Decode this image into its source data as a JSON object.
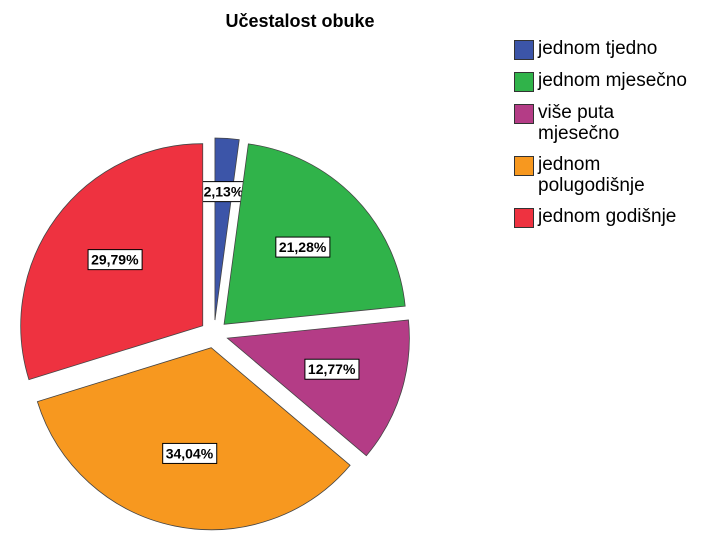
{
  "chart_data": {
    "type": "pie",
    "title": "Učestalost obuke",
    "categories": [
      "jednom tjedno",
      "jednom mjesečno",
      "više puta mjesečno",
      "jednom polugodišnje",
      "jednom godišnje"
    ],
    "values": [
      2.13,
      21.28,
      12.77,
      34.04,
      29.79
    ],
    "value_labels": [
      "2,13%",
      "21,28%",
      "12,77%",
      "34,04%",
      "29,79%"
    ],
    "colors": [
      "#3c55a8",
      "#30b34a",
      "#b43c86",
      "#f7981f",
      "#ee3240"
    ],
    "exploded": true,
    "legend": "right"
  }
}
